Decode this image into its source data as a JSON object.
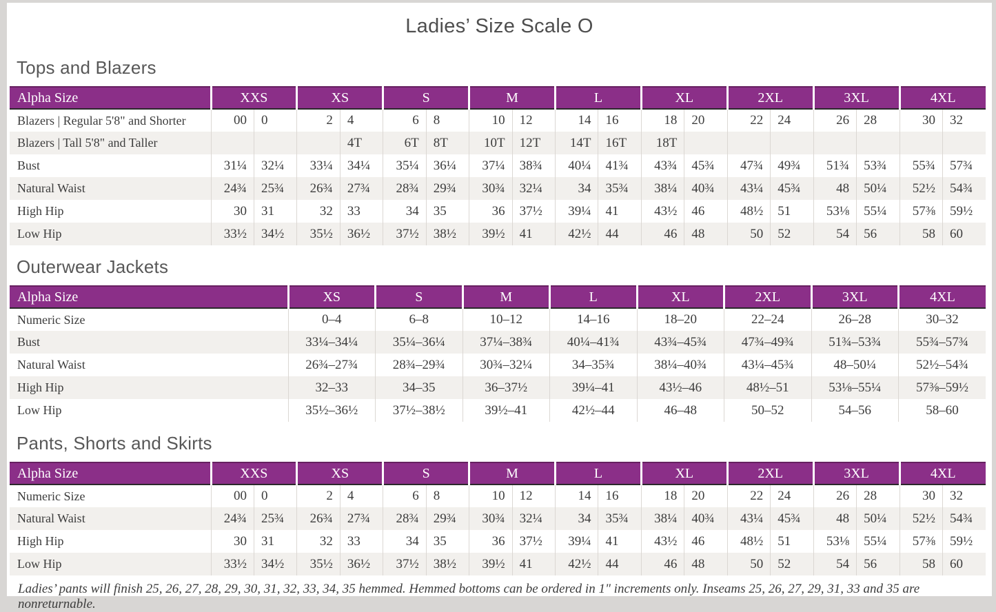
{
  "page": {
    "title": "Ladies’ Size Scale O",
    "footnote": "Ladies’ pants will finish 25, 26, 27, 28, 29, 30, 31, 32, 33, 34, 35 hemmed. Hemmed bottoms can be ordered in 1\" increments only. Inseams 25, 26, 27, 29, 31, 33 and 35 are nonreturnable."
  },
  "colors": {
    "header_purple": "#8B2F88",
    "header_top_border": "#662060",
    "header_bottom_border": "#2B282B",
    "row_alt": "#F2F0ED",
    "divider": "#DBD7D3",
    "text": "#3C3C3C",
    "heading_gray": "#585858",
    "page_frame": "#D8D6D4"
  },
  "tables": [
    {
      "section": "Tops and Blazers",
      "mode": "paired",
      "header_label": "Alpha Size",
      "sizes": [
        "XXS",
        "XS",
        "S",
        "M",
        "L",
        "XL",
        "2XL",
        "3XL",
        "4XL"
      ],
      "rows": [
        {
          "label": "Blazers | Regular 5'8\" and Shorter",
          "values": [
            [
              "00",
              "0"
            ],
            [
              "2",
              "4"
            ],
            [
              "6",
              "8"
            ],
            [
              "10",
              "12"
            ],
            [
              "14",
              "16"
            ],
            [
              "18",
              "20"
            ],
            [
              "22",
              "24"
            ],
            [
              "26",
              "28"
            ],
            [
              "30",
              "32"
            ]
          ]
        },
        {
          "label": "Blazers | Tall 5'8\" and Taller",
          "values": [
            [
              "",
              ""
            ],
            [
              "",
              "4T"
            ],
            [
              "6T",
              "8T"
            ],
            [
              "10T",
              "12T"
            ],
            [
              "14T",
              "16T"
            ],
            [
              "18T",
              ""
            ],
            [
              "",
              ""
            ],
            [
              "",
              ""
            ],
            [
              "",
              ""
            ]
          ]
        },
        {
          "label": "Bust",
          "values": [
            [
              "31¼",
              "32¼"
            ],
            [
              "33¼",
              "34¼"
            ],
            [
              "35¼",
              "36¼"
            ],
            [
              "37¼",
              "38¾"
            ],
            [
              "40¼",
              "41¾"
            ],
            [
              "43¾",
              "45¾"
            ],
            [
              "47¾",
              "49¾"
            ],
            [
              "51¾",
              "53¾"
            ],
            [
              "55¾",
              "57¾"
            ]
          ]
        },
        {
          "label": "Natural Waist",
          "values": [
            [
              "24¾",
              "25¾"
            ],
            [
              "26¾",
              "27¾"
            ],
            [
              "28¾",
              "29¾"
            ],
            [
              "30¾",
              "32¼"
            ],
            [
              "34",
              "35¾"
            ],
            [
              "38¼",
              "40¾"
            ],
            [
              "43¼",
              "45¾"
            ],
            [
              "48",
              "50¼"
            ],
            [
              "52½",
              "54¾"
            ]
          ]
        },
        {
          "label": "High Hip",
          "values": [
            [
              "30",
              "31"
            ],
            [
              "32",
              "33"
            ],
            [
              "34",
              "35"
            ],
            [
              "36",
              "37½"
            ],
            [
              "39¼",
              "41"
            ],
            [
              "43½",
              "46"
            ],
            [
              "48½",
              "51"
            ],
            [
              "53⅛",
              "55¼"
            ],
            [
              "57⅜",
              "59½"
            ]
          ]
        },
        {
          "label": "Low Hip",
          "values": [
            [
              "33½",
              "34½"
            ],
            [
              "35½",
              "36½"
            ],
            [
              "37½",
              "38½"
            ],
            [
              "39½",
              "41"
            ],
            [
              "42½",
              "44"
            ],
            [
              "46",
              "48"
            ],
            [
              "50",
              "52"
            ],
            [
              "54",
              "56"
            ],
            [
              "58",
              "60"
            ]
          ]
        }
      ]
    },
    {
      "section": "Outerwear Jackets",
      "mode": "single",
      "header_label": "Alpha Size",
      "sizes": [
        "XS",
        "S",
        "M",
        "L",
        "XL",
        "2XL",
        "3XL",
        "4XL"
      ],
      "rows": [
        {
          "label": "Numeric Size",
          "values": [
            "0–4",
            "6–8",
            "10–12",
            "14–16",
            "18–20",
            "22–24",
            "26–28",
            "30–32"
          ]
        },
        {
          "label": "Bust",
          "values": [
            "33¼–34¼",
            "35¼–36¼",
            "37¼–38¾",
            "40¼–41¾",
            "43¾–45¾",
            "47¾–49¾",
            "51¾–53¾",
            "55¾–57¾"
          ]
        },
        {
          "label": "Natural Waist",
          "values": [
            "26¾–27¾",
            "28¾–29¾",
            "30¾–32¼",
            "34–35¾",
            "38¼–40¾",
            "43¼–45¾",
            "48–50¼",
            "52½–54¾"
          ]
        },
        {
          "label": "High Hip",
          "values": [
            "32–33",
            "34–35",
            "36–37½",
            "39¼–41",
            "43½–46",
            "48½–51",
            "53⅛–55¼",
            "57⅜–59½"
          ]
        },
        {
          "label": "Low Hip",
          "values": [
            "35½–36½",
            "37½–38½",
            "39½–41",
            "42½–44",
            "46–48",
            "50–52",
            "54–56",
            "58–60"
          ]
        }
      ]
    },
    {
      "section": "Pants, Shorts and Skirts",
      "mode": "paired",
      "header_label": "Alpha Size",
      "sizes": [
        "XXS",
        "XS",
        "S",
        "M",
        "L",
        "XL",
        "2XL",
        "3XL",
        "4XL"
      ],
      "rows": [
        {
          "label": "Numeric Size",
          "values": [
            [
              "00",
              "0"
            ],
            [
              "2",
              "4"
            ],
            [
              "6",
              "8"
            ],
            [
              "10",
              "12"
            ],
            [
              "14",
              "16"
            ],
            [
              "18",
              "20"
            ],
            [
              "22",
              "24"
            ],
            [
              "26",
              "28"
            ],
            [
              "30",
              "32"
            ]
          ]
        },
        {
          "label": "Natural Waist",
          "values": [
            [
              "24¾",
              "25¾"
            ],
            [
              "26¾",
              "27¾"
            ],
            [
              "28¾",
              "29¾"
            ],
            [
              "30¾",
              "32¼"
            ],
            [
              "34",
              "35¾"
            ],
            [
              "38¼",
              "40¾"
            ],
            [
              "43¼",
              "45¾"
            ],
            [
              "48",
              "50¼"
            ],
            [
              "52½",
              "54¾"
            ]
          ]
        },
        {
          "label": "High Hip",
          "values": [
            [
              "30",
              "31"
            ],
            [
              "32",
              "33"
            ],
            [
              "34",
              "35"
            ],
            [
              "36",
              "37½"
            ],
            [
              "39¼",
              "41"
            ],
            [
              "43½",
              "46"
            ],
            [
              "48½",
              "51"
            ],
            [
              "53⅛",
              "55¼"
            ],
            [
              "57⅜",
              "59½"
            ]
          ]
        },
        {
          "label": "Low Hip",
          "values": [
            [
              "33½",
              "34½"
            ],
            [
              "35½",
              "36½"
            ],
            [
              "37½",
              "38½"
            ],
            [
              "39½",
              "41"
            ],
            [
              "42½",
              "44"
            ],
            [
              "46",
              "48"
            ],
            [
              "50",
              "52"
            ],
            [
              "54",
              "56"
            ],
            [
              "58",
              "60"
            ]
          ]
        }
      ]
    }
  ]
}
